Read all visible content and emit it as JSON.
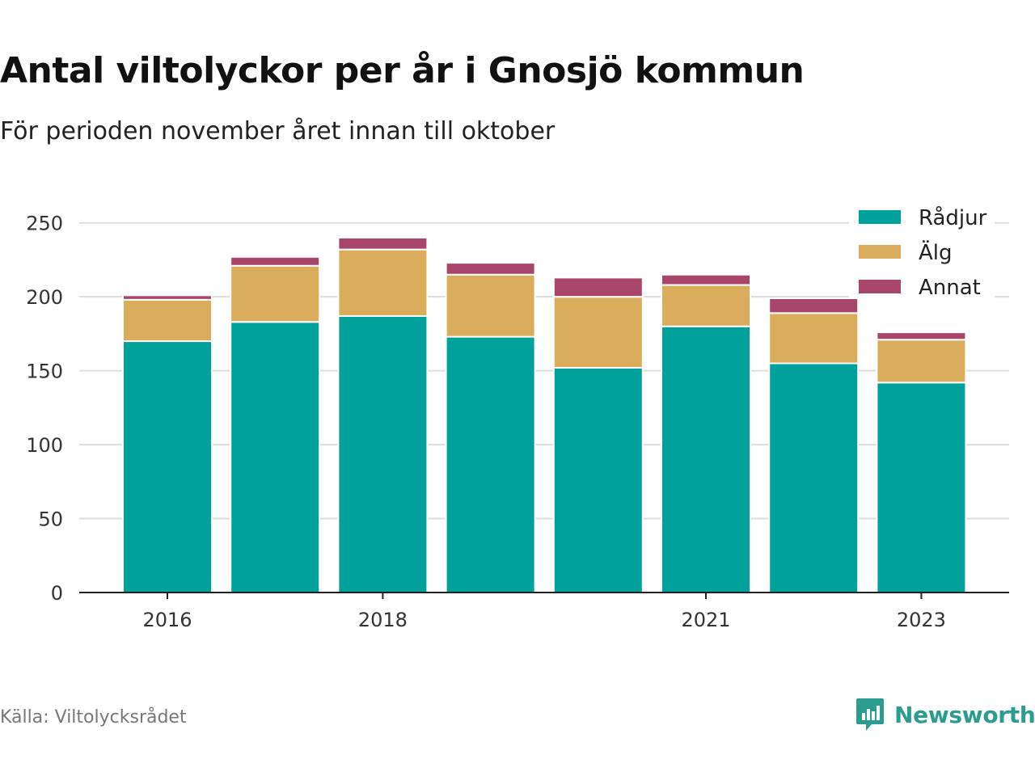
{
  "header": {
    "title": "Antal viltolyckor per år i Gnosjö kommun",
    "subtitle": "För perioden november året innan till oktober"
  },
  "footer": {
    "source": "Källa: Viltolycksrådet",
    "logo_text": "Newsworthy"
  },
  "colors": {
    "Rådjur": "#00a19a",
    "Älg": "#d9ad5b",
    "Annat": "#a8456b",
    "grid": "#dddddd",
    "axis": "#222222",
    "logo": "#2a9d8f"
  },
  "chart_data": {
    "type": "bar",
    "stacked": true,
    "categories": [
      "2016",
      "2017",
      "2018",
      "2019",
      "2020",
      "2021",
      "2022",
      "2023"
    ],
    "x_tick_labels": [
      "2016",
      "2018",
      "2021",
      "2023"
    ],
    "series": [
      {
        "name": "Rådjur",
        "values": [
          170,
          183,
          187,
          173,
          152,
          180,
          155,
          142
        ]
      },
      {
        "name": "Älg",
        "values": [
          28,
          38,
          45,
          42,
          48,
          28,
          34,
          29
        ]
      },
      {
        "name": "Annat",
        "values": [
          3,
          6,
          8,
          8,
          13,
          7,
          10,
          5
        ]
      }
    ],
    "y_ticks": [
      0,
      50,
      100,
      150,
      200,
      250
    ],
    "ylim": [
      0,
      260
    ],
    "grid": true,
    "legend_position": "top-right"
  }
}
